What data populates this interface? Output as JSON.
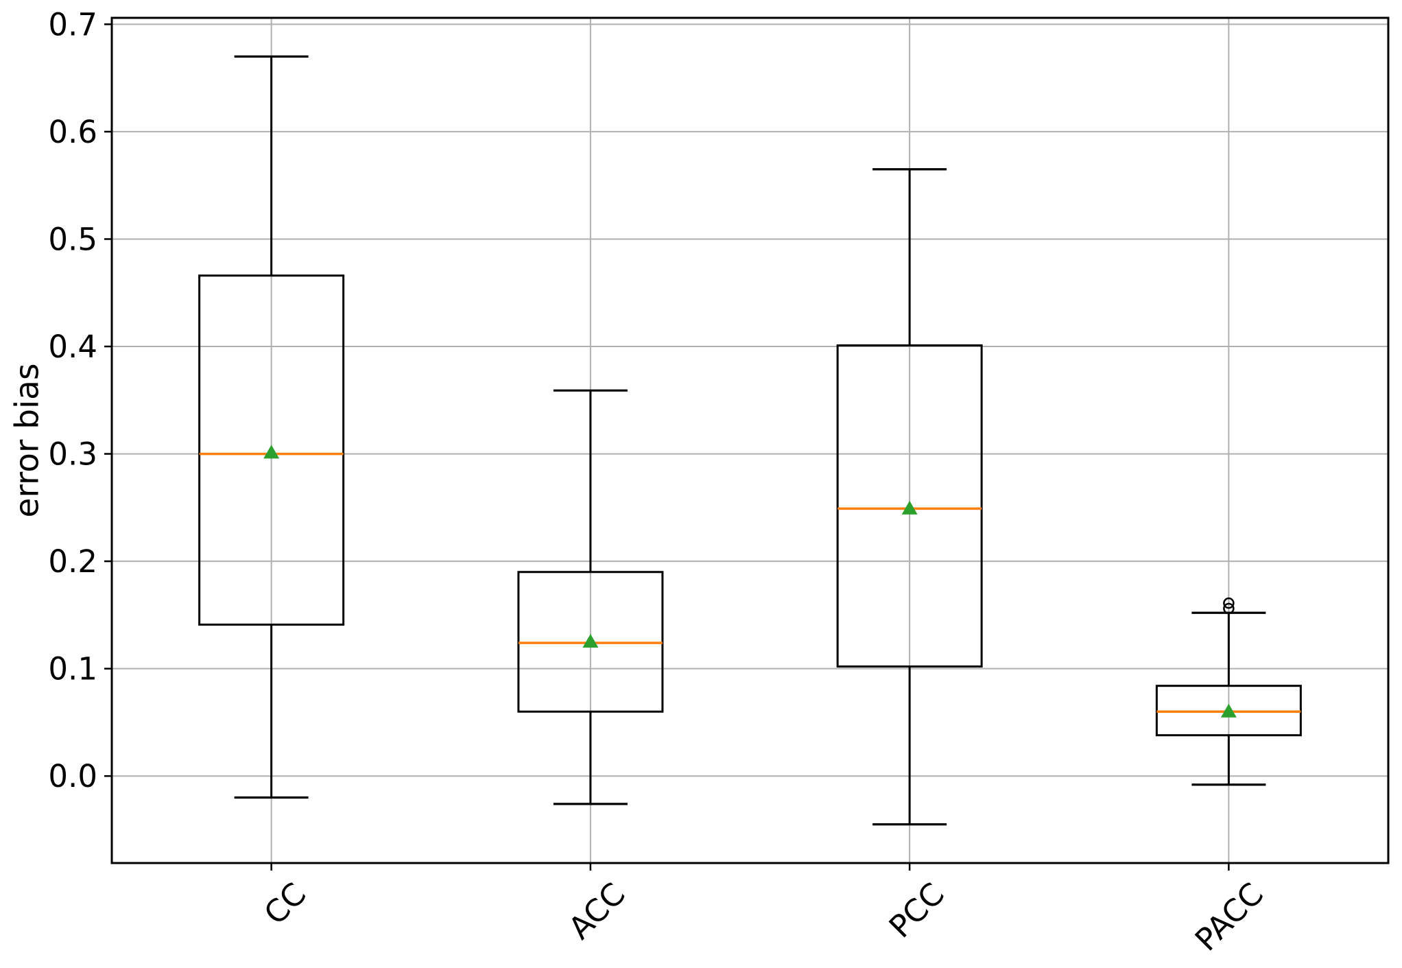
{
  "chart_data": {
    "type": "boxplot",
    "title": "",
    "xlabel": "",
    "ylabel": "error bias",
    "categories": [
      "CC",
      "ACC",
      "PCC",
      "PACC"
    ],
    "x_tick_rotation_deg": 45,
    "ytick_labels": [
      "0.0",
      "0.1",
      "0.2",
      "0.3",
      "0.4",
      "0.5",
      "0.6",
      "0.7"
    ],
    "ytick_values": [
      0.0,
      0.1,
      0.2,
      0.3,
      0.4,
      0.5,
      0.6,
      0.7
    ],
    "ylim": [
      -0.081,
      0.706
    ],
    "grid": true,
    "legend": "none",
    "marker_meanings": {
      "orange_line": "median",
      "green_triangle": "mean",
      "hollow_circle": "outlier"
    },
    "colors": {
      "median_line": "#ff7f0e",
      "mean_marker": "#2ca02c",
      "box_line": "#000000",
      "grid_line": "#b0b0b0",
      "text": "#000000",
      "background": "#ffffff"
    },
    "series": [
      {
        "label": "CC",
        "whisker_low": -0.02,
        "q1": 0.141,
        "median": 0.3,
        "mean": 0.302,
        "q3": 0.466,
        "whisker_high": 0.67,
        "outliers": []
      },
      {
        "label": "ACC",
        "whisker_low": -0.026,
        "q1": 0.06,
        "median": 0.124,
        "mean": 0.126,
        "q3": 0.19,
        "whisker_high": 0.359,
        "outliers": []
      },
      {
        "label": "PCC",
        "whisker_low": -0.045,
        "q1": 0.102,
        "median": 0.249,
        "mean": 0.25,
        "q3": 0.401,
        "whisker_high": 0.565,
        "outliers": []
      },
      {
        "label": "PACC",
        "whisker_low": -0.008,
        "q1": 0.038,
        "median": 0.06,
        "mean": 0.061,
        "q3": 0.084,
        "whisker_high": 0.152,
        "outliers": [
          0.156,
          0.161
        ]
      }
    ]
  }
}
